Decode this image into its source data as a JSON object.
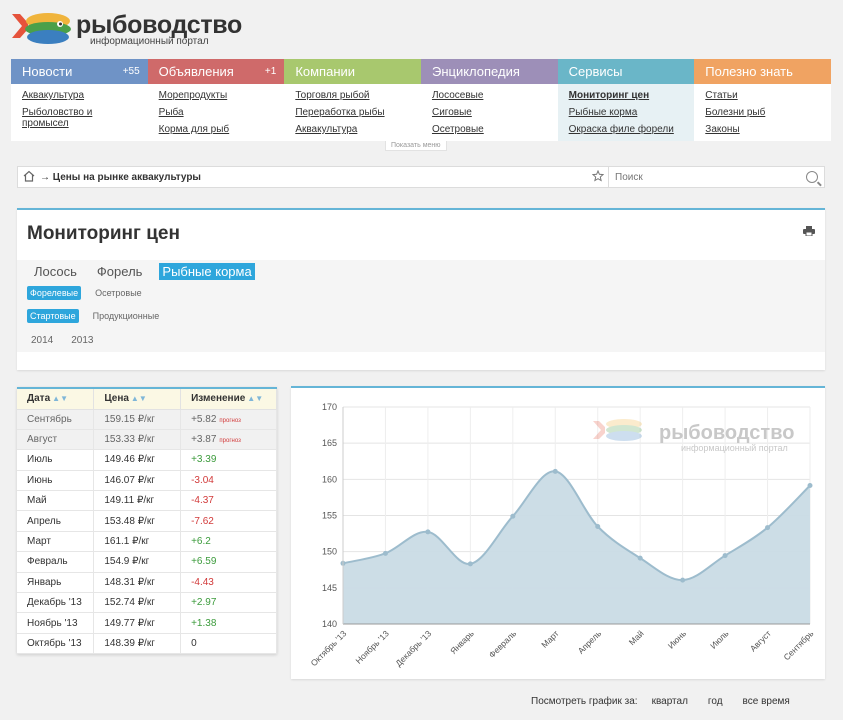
{
  "logo": {
    "title": "рыбоводство",
    "subtitle": "информационный портал"
  },
  "nav": [
    {
      "label": "Новости",
      "badge": "+55",
      "color": "#6f93c6",
      "links": [
        "Аквакультура",
        "Рыболовство и промысел"
      ]
    },
    {
      "label": "Объявления",
      "badge": "+1",
      "color": "#cf6a6a",
      "links": [
        "Морепродукты",
        "Рыба",
        "Корма для рыб"
      ]
    },
    {
      "label": "Компании",
      "badge": "",
      "color": "#a8c86e",
      "links": [
        "Торговля рыбой",
        "Переработка рыбы",
        "Аквакультура"
      ]
    },
    {
      "label": "Энциклопедия",
      "badge": "",
      "color": "#9d8fb8",
      "links": [
        "Лососевые",
        "Сиговые",
        "Осетровые"
      ]
    },
    {
      "label": "Сервисы",
      "badge": "",
      "color": "#6ab6c8",
      "links": [
        "Мониторинг цен",
        "Рыбные корма",
        "Окраска филе форели"
      ]
    },
    {
      "label": "Полезно знать",
      "badge": "",
      "color": "#f0a362",
      "links": [
        "Статьи",
        "Болезни рыб",
        "Законы"
      ]
    }
  ],
  "show_menu": "Показать меню",
  "breadcrumb": {
    "text": "→ Цены на рынке аквакультуры"
  },
  "search": {
    "placeholder": "Поиск"
  },
  "page": {
    "title": "Мониторинг цен",
    "tabs": [
      "Лосось",
      "Форель",
      "Рыбные корма"
    ],
    "tabs_selected": 2,
    "filter1": [
      "Форелевые",
      "Осетровые"
    ],
    "filter2": [
      "Стартовые",
      "Продукционные"
    ],
    "years": [
      "2014",
      "2013"
    ]
  },
  "table": {
    "headers": [
      "Дата",
      "Цена",
      "Изменение"
    ],
    "forecast_label": "прогноз",
    "rows": [
      {
        "date": "Сентябрь",
        "price": "159.15 ₽/кг",
        "change": "+5.82",
        "forecast": true
      },
      {
        "date": "Август",
        "price": "153.33 ₽/кг",
        "change": "+3.87",
        "forecast": true
      },
      {
        "date": "Июль",
        "price": "149.46 ₽/кг",
        "change": "+3.39",
        "forecast": false
      },
      {
        "date": "Июнь",
        "price": "146.07 ₽/кг",
        "change": "-3.04",
        "forecast": false
      },
      {
        "date": "Май",
        "price": "149.11 ₽/кг",
        "change": "-4.37",
        "forecast": false
      },
      {
        "date": "Апрель",
        "price": "153.48 ₽/кг",
        "change": "-7.62",
        "forecast": false
      },
      {
        "date": "Март",
        "price": "161.1 ₽/кг",
        "change": "+6.2",
        "forecast": false
      },
      {
        "date": "Февраль",
        "price": "154.9 ₽/кг",
        "change": "+6.59",
        "forecast": false
      },
      {
        "date": "Январь",
        "price": "148.31 ₽/кг",
        "change": "-4.43",
        "forecast": false
      },
      {
        "date": "Декабрь '13",
        "price": "152.74 ₽/кг",
        "change": "+2.97",
        "forecast": false
      },
      {
        "date": "Ноябрь '13",
        "price": "149.77 ₽/кг",
        "change": "+1.38",
        "forecast": false
      },
      {
        "date": "Октябрь '13",
        "price": "148.39 ₽/кг",
        "change": "0",
        "forecast": false
      }
    ]
  },
  "chart_data": {
    "type": "area",
    "categories": [
      "Октябрь '13",
      "Ноябрь '13",
      "Декабрь '13",
      "Январь",
      "Февраль",
      "Март",
      "Апрель",
      "Май",
      "Июнь",
      "Июль",
      "Август",
      "Сентябрь"
    ],
    "values": [
      148.39,
      149.77,
      152.74,
      148.31,
      154.9,
      161.1,
      153.48,
      149.11,
      146.07,
      149.46,
      153.33,
      159.15
    ],
    "ylim": [
      140,
      170
    ],
    "yticks": [
      140,
      145,
      150,
      155,
      160,
      165,
      170
    ],
    "grid": true,
    "fill_color": "#c9dbe5",
    "line_color": "#9dbccd",
    "watermark_title": "рыбоводство",
    "watermark_subtitle": "информационный портал"
  },
  "bottom": {
    "label": "Посмотреть график за:",
    "options": [
      "квартал",
      "год",
      "все время"
    ]
  }
}
